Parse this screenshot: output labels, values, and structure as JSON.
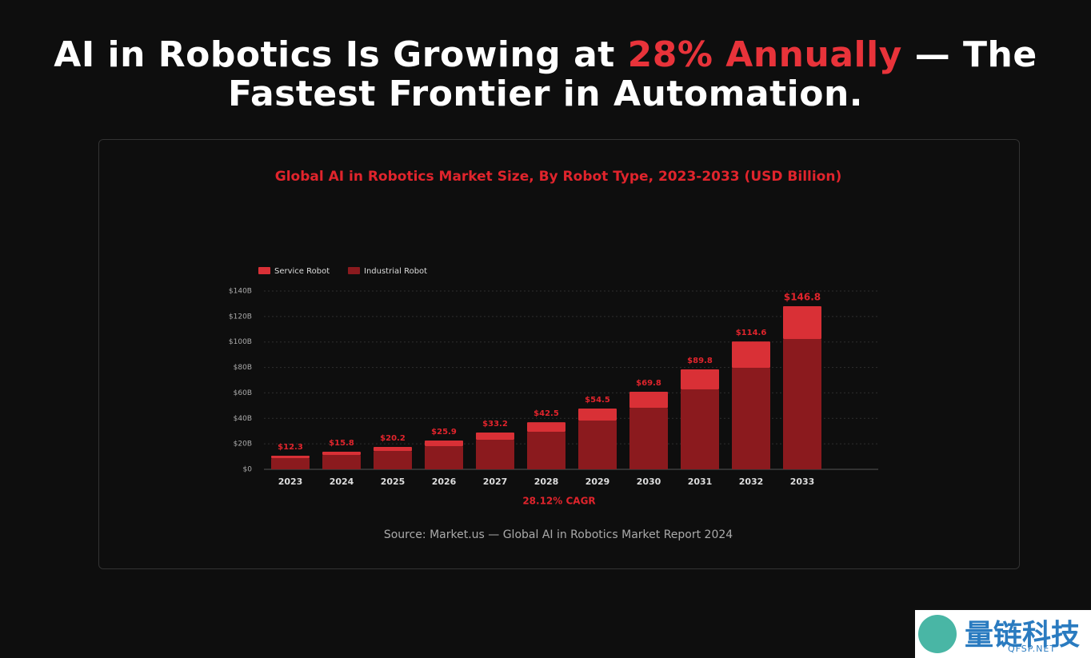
{
  "header": {
    "title_before": "AI in Robotics Is Growing at",
    "title_highlight": "28% Annually",
    "title_after": "— The Fastest Frontier in Automation."
  },
  "chart_data": {
    "type": "bar",
    "stacked": true,
    "title": "Global AI in Robotics Market Size, By Robot Type, 2023-2033 (USD Billion)",
    "categories": [
      "2023",
      "2024",
      "2025",
      "2026",
      "2027",
      "2028",
      "2029",
      "2030",
      "2031",
      "2032",
      "2033"
    ],
    "series": [
      {
        "name": "Service Robot",
        "color": "#d93036",
        "values": [
          1.9,
          2.5,
          3.2,
          4.4,
          5.7,
          7.5,
          9.4,
          12.6,
          15.7,
          20.7,
          25.8
        ]
      },
      {
        "name": "Industrial Robot",
        "color": "#8b1a1e",
        "values": [
          8.8,
          11.3,
          14.4,
          18.2,
          23.2,
          29.5,
          38.3,
          48.3,
          62.8,
          79.7,
          102.3
        ]
      }
    ],
    "totals": {
      "values": [
        12.3,
        15.8,
        20.2,
        25.9,
        33.2,
        42.5,
        54.5,
        69.8,
        89.8,
        114.6,
        146.8
      ],
      "value_labels": [
        "$12.3",
        "$15.8",
        "$20.2",
        "$25.9",
        "$33.2",
        "$42.5",
        "$54.5",
        "$69.8",
        "$89.8",
        "$114.6",
        "$146.8"
      ]
    },
    "ylim": [
      0,
      140
    ],
    "yticks": [
      {
        "value": 0,
        "label": "$0"
      },
      {
        "value": 20,
        "label": "$20B"
      },
      {
        "value": 40,
        "label": "$40B"
      },
      {
        "value": 60,
        "label": "$60B"
      },
      {
        "value": 80,
        "label": "$80B"
      },
      {
        "value": 100,
        "label": "$100B"
      },
      {
        "value": 120,
        "label": "$120B"
      },
      {
        "value": 140,
        "label": "$140B"
      }
    ],
    "grid": true,
    "legend": "top-left",
    "annotation": "28.12% CAGR",
    "source": "Source: Market.us — Global AI in Robotics Market Report 2024"
  },
  "watermark": {
    "name": "量链科技",
    "site": "QFSP.NET"
  }
}
